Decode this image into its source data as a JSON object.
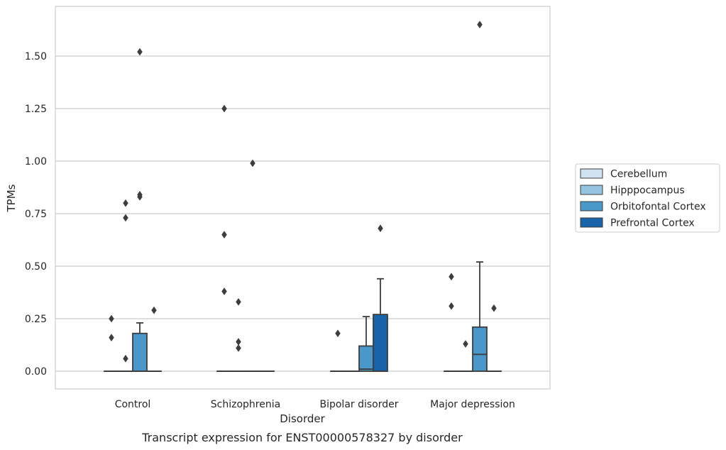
{
  "chart_data": {
    "type": "boxplot",
    "title": "",
    "caption": "Transcript expression for ENST00000578327 by disorder",
    "xlabel": "Disorder",
    "ylabel": "TPMs",
    "ylim": [
      -0.08,
      1.75
    ],
    "yticks": [
      "0.00",
      "0.25",
      "0.50",
      "0.75",
      "1.00",
      "1.25",
      "1.50"
    ],
    "ytick_values": [
      0,
      0.25,
      0.5,
      0.75,
      1.0,
      1.25,
      1.5
    ],
    "grid": "horizontal",
    "legend_position": "right",
    "categories": [
      "Control",
      "Schizophrenia",
      "Bipolar disorder",
      "Major depression"
    ],
    "series": [
      {
        "name": "Cerebellum",
        "color": "#d0e1f2",
        "boxes": [
          {
            "q1": 0,
            "median": 0,
            "q3": 0,
            "whisker_low": 0,
            "whisker_high": 0,
            "outliers": [
              0.25,
              0.16
            ]
          },
          {
            "q1": 0,
            "median": 0,
            "q3": 0,
            "whisker_low": 0,
            "whisker_high": 0,
            "outliers": [
              1.25,
              0.65,
              0.38
            ]
          },
          {
            "q1": 0,
            "median": 0,
            "q3": 0,
            "whisker_low": 0,
            "whisker_high": 0,
            "outliers": [
              0.18
            ]
          },
          {
            "q1": 0,
            "median": 0,
            "q3": 0,
            "whisker_low": 0,
            "whisker_high": 0,
            "outliers": [
              0.45,
              0.31
            ]
          }
        ]
      },
      {
        "name": "Hipppocampus",
        "color": "#94c4df",
        "boxes": [
          {
            "q1": 0,
            "median": 0,
            "q3": 0,
            "whisker_low": 0,
            "whisker_high": 0,
            "outliers": [
              0.8,
              0.73,
              0.06
            ]
          },
          {
            "q1": 0,
            "median": 0,
            "q3": 0,
            "whisker_low": 0,
            "whisker_high": 0,
            "outliers": [
              0.33,
              0.14,
              0.11
            ]
          },
          {
            "q1": 0,
            "median": 0,
            "q3": 0,
            "whisker_low": 0,
            "whisker_high": 0,
            "outliers": []
          },
          {
            "q1": 0,
            "median": 0,
            "q3": 0,
            "whisker_low": 0,
            "whisker_high": 0,
            "outliers": [
              0.13
            ]
          }
        ]
      },
      {
        "name": "Orbitofontal Cortex",
        "color": "#4a98c9",
        "boxes": [
          {
            "q1": 0,
            "median": 0,
            "q3": 0.18,
            "whisker_low": 0,
            "whisker_high": 0.23,
            "outliers": [
              1.52,
              0.84,
              0.83
            ]
          },
          {
            "q1": 0,
            "median": 0,
            "q3": 0,
            "whisker_low": 0,
            "whisker_high": 0,
            "outliers": [
              0.99
            ]
          },
          {
            "q1": 0,
            "median": 0.01,
            "q3": 0.12,
            "whisker_low": 0,
            "whisker_high": 0.26,
            "outliers": []
          },
          {
            "q1": 0,
            "median": 0.08,
            "q3": 0.21,
            "whisker_low": 0,
            "whisker_high": 0.52,
            "outliers": [
              1.65
            ]
          }
        ]
      },
      {
        "name": "Prefrontal Cortex",
        "color": "#1764ab",
        "boxes": [
          {
            "q1": 0,
            "median": 0,
            "q3": 0,
            "whisker_low": 0,
            "whisker_high": 0,
            "outliers": [
              0.29
            ]
          },
          {
            "q1": 0,
            "median": 0,
            "q3": 0,
            "whisker_low": 0,
            "whisker_high": 0,
            "outliers": []
          },
          {
            "q1": 0,
            "median": 0,
            "q3": 0.27,
            "whisker_low": 0,
            "whisker_high": 0.44,
            "outliers": [
              0.68
            ]
          },
          {
            "q1": 0,
            "median": 0,
            "q3": 0,
            "whisker_low": 0,
            "whisker_high": 0,
            "outliers": [
              0.3
            ]
          }
        ]
      }
    ]
  }
}
